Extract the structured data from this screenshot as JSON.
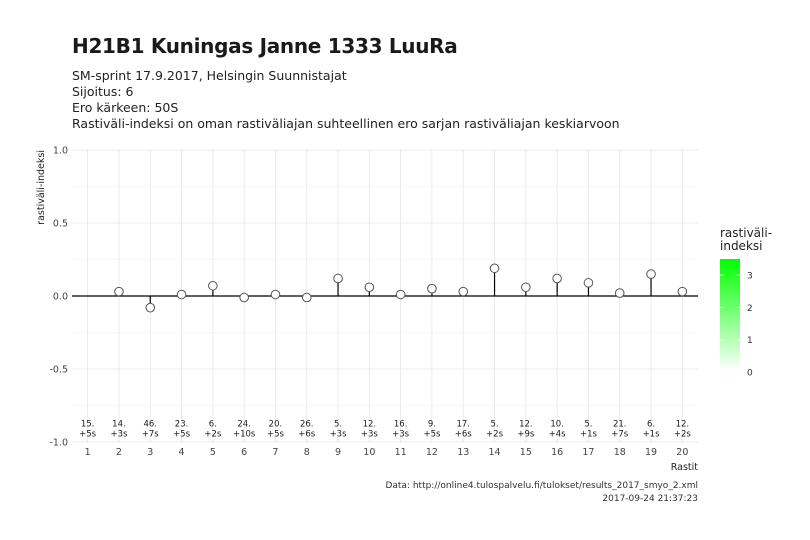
{
  "header": {
    "title": "H21B1 Kuningas Janne 1333 LuuRa",
    "subtitle_lines": [
      "SM-sprint 17.9.2017, Helsingin Suunnistajat",
      "Sijoitus: 6",
      "Ero kärkeen: 50S",
      "Rastiväli-indeksi on oman rastiväliajan suhteellinen ero sarjan rastiväliajan keskiarvoon"
    ]
  },
  "caption": {
    "source": "Data: http://online4.tulospalvelu.fi/tulokset/results_2017_smyo_2.xml",
    "timestamp": "2017-09-24 21:37:23"
  },
  "legend": {
    "title_line1": "rastiväli-",
    "title_line2": "indeksi",
    "ticks": [
      "0",
      "1",
      "2",
      "3"
    ],
    "range": [
      0,
      3.5
    ],
    "color_low": "#ffffff",
    "color_high": "#00ff00"
  },
  "chart_data": {
    "type": "lollipop",
    "xlabel": "Rastit",
    "ylabel": "rastiväli-indeksi",
    "x": [
      1,
      2,
      3,
      4,
      5,
      6,
      7,
      8,
      9,
      10,
      11,
      12,
      13,
      14,
      15,
      16,
      17,
      18,
      19,
      20
    ],
    "values": [
      null,
      0.03,
      -0.08,
      0.01,
      0.07,
      -0.01,
      0.01,
      -0.01,
      0.12,
      0.06,
      0.01,
      0.05,
      0.03,
      0.19,
      0.06,
      0.12,
      0.09,
      0.02,
      0.15,
      0.03
    ],
    "ylim": [
      -1.0,
      1.0
    ],
    "yticks": [
      -1.0,
      -0.5,
      0.0,
      0.5,
      1.0
    ],
    "ytick_labels": [
      "-1.0",
      "-0.5",
      "0.0",
      "0.5",
      "1.0"
    ],
    "xlim": [
      0.5,
      20.5
    ],
    "grid": true,
    "annotations": [
      {
        "rank": "15.",
        "diff": "+5s"
      },
      {
        "rank": "14.",
        "diff": "+3s"
      },
      {
        "rank": "46.",
        "diff": "+7s"
      },
      {
        "rank": "23.",
        "diff": "+5s"
      },
      {
        "rank": "6.",
        "diff": "+2s"
      },
      {
        "rank": "24.",
        "diff": "+10s"
      },
      {
        "rank": "20.",
        "diff": "+5s"
      },
      {
        "rank": "26.",
        "diff": "+6s"
      },
      {
        "rank": "5.",
        "diff": "+3s"
      },
      {
        "rank": "12.",
        "diff": "+3s"
      },
      {
        "rank": "16.",
        "diff": "+3s"
      },
      {
        "rank": "9.",
        "diff": "+5s"
      },
      {
        "rank": "17.",
        "diff": "+6s"
      },
      {
        "rank": "5.",
        "diff": "+2s"
      },
      {
        "rank": "12.",
        "diff": "+9s"
      },
      {
        "rank": "10.",
        "diff": "+4s"
      },
      {
        "rank": "5.",
        "diff": "+1s"
      },
      {
        "rank": "21.",
        "diff": "+7s"
      },
      {
        "rank": "6.",
        "diff": "+1s"
      },
      {
        "rank": "12.",
        "diff": "+2s"
      }
    ],
    "annotation_y": -0.9,
    "point_fill": "#ffffff",
    "point_stroke": "#555555",
    "stem_color": "#000000",
    "zero_line_color": "#000000",
    "grid_color": "#e6e6e6"
  }
}
